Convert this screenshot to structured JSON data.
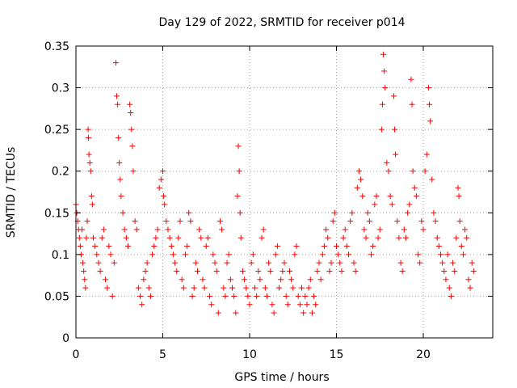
{
  "chart_data": {
    "type": "scatter",
    "title": "Day 129 of 2022, SRMTID for receiver p014",
    "xlabel": "GPS time / hours",
    "ylabel": "SRMTID / TECUs",
    "xlim": [
      0,
      24
    ],
    "ylim": [
      0,
      0.35
    ],
    "xticks": [
      0,
      5,
      10,
      15,
      20
    ],
    "xtick_labels": [
      "0",
      "5",
      "10",
      "15",
      "20"
    ],
    "yticks": [
      0,
      0.05,
      0.1,
      0.15,
      0.2,
      0.25,
      0.3,
      0.35
    ],
    "ytick_labels": [
      "0",
      "0.05",
      "0.1",
      "0.15",
      "0.2",
      "0.25",
      "0.3",
      "0.35"
    ],
    "grid": true,
    "marker": "+",
    "color": "#ff0000",
    "series": [
      {
        "name": "SRMTID",
        "points": [
          [
            0.0,
            0.16
          ],
          [
            0.05,
            0.15
          ],
          [
            0.1,
            0.14
          ],
          [
            0.15,
            0.13
          ],
          [
            0.2,
            0.12
          ],
          [
            0.25,
            0.11
          ],
          [
            0.3,
            0.1
          ],
          [
            0.35,
            0.13
          ],
          [
            0.4,
            0.09
          ],
          [
            0.45,
            0.08
          ],
          [
            0.5,
            0.07
          ],
          [
            0.55,
            0.06
          ],
          [
            0.6,
            0.12
          ],
          [
            0.65,
            0.14
          ],
          [
            0.7,
            0.25
          ],
          [
            0.72,
            0.24
          ],
          [
            0.75,
            0.22
          ],
          [
            0.8,
            0.21
          ],
          [
            0.85,
            0.2
          ],
          [
            0.9,
            0.17
          ],
          [
            0.95,
            0.16
          ],
          [
            1.0,
            0.12
          ],
          [
            1.1,
            0.11
          ],
          [
            1.2,
            0.1
          ],
          [
            1.3,
            0.09
          ],
          [
            1.4,
            0.08
          ],
          [
            1.5,
            0.12
          ],
          [
            1.6,
            0.13
          ],
          [
            1.7,
            0.07
          ],
          [
            1.8,
            0.06
          ],
          [
            1.9,
            0.11
          ],
          [
            2.0,
            0.1
          ],
          [
            2.1,
            0.05
          ],
          [
            2.2,
            0.09
          ],
          [
            2.3,
            0.33
          ],
          [
            2.35,
            0.29
          ],
          [
            2.4,
            0.28
          ],
          [
            2.45,
            0.24
          ],
          [
            2.5,
            0.21
          ],
          [
            2.55,
            0.19
          ],
          [
            2.6,
            0.17
          ],
          [
            2.7,
            0.15
          ],
          [
            2.8,
            0.13
          ],
          [
            2.9,
            0.12
          ],
          [
            3.0,
            0.11
          ],
          [
            3.1,
            0.28
          ],
          [
            3.15,
            0.27
          ],
          [
            3.2,
            0.25
          ],
          [
            3.25,
            0.23
          ],
          [
            3.3,
            0.2
          ],
          [
            3.4,
            0.14
          ],
          [
            3.5,
            0.13
          ],
          [
            3.6,
            0.06
          ],
          [
            3.7,
            0.05
          ],
          [
            3.8,
            0.04
          ],
          [
            3.9,
            0.07
          ],
          [
            4.0,
            0.08
          ],
          [
            4.1,
            0.09
          ],
          [
            4.2,
            0.06
          ],
          [
            4.3,
            0.05
          ],
          [
            4.4,
            0.1
          ],
          [
            4.5,
            0.11
          ],
          [
            4.6,
            0.12
          ],
          [
            4.7,
            0.13
          ],
          [
            4.8,
            0.18
          ],
          [
            4.9,
            0.19
          ],
          [
            5.0,
            0.2
          ],
          [
            5.05,
            0.17
          ],
          [
            5.1,
            0.16
          ],
          [
            5.2,
            0.14
          ],
          [
            5.3,
            0.13
          ],
          [
            5.4,
            0.12
          ],
          [
            5.5,
            0.11
          ],
          [
            5.6,
            0.1
          ],
          [
            5.7,
            0.09
          ],
          [
            5.8,
            0.08
          ],
          [
            5.9,
            0.12
          ],
          [
            6.0,
            0.14
          ],
          [
            6.1,
            0.07
          ],
          [
            6.2,
            0.06
          ],
          [
            6.3,
            0.1
          ],
          [
            6.4,
            0.11
          ],
          [
            6.5,
            0.15
          ],
          [
            6.6,
            0.14
          ],
          [
            6.7,
            0.05
          ],
          [
            6.8,
            0.06
          ],
          [
            6.9,
            0.09
          ],
          [
            7.0,
            0.08
          ],
          [
            7.1,
            0.13
          ],
          [
            7.2,
            0.12
          ],
          [
            7.3,
            0.07
          ],
          [
            7.4,
            0.06
          ],
          [
            7.5,
            0.11
          ],
          [
            7.6,
            0.12
          ],
          [
            7.7,
            0.05
          ],
          [
            7.8,
            0.04
          ],
          [
            7.9,
            0.1
          ],
          [
            8.0,
            0.09
          ],
          [
            8.1,
            0.08
          ],
          [
            8.2,
            0.03
          ],
          [
            8.3,
            0.14
          ],
          [
            8.4,
            0.13
          ],
          [
            8.5,
            0.06
          ],
          [
            8.6,
            0.05
          ],
          [
            8.7,
            0.09
          ],
          [
            8.8,
            0.1
          ],
          [
            8.9,
            0.07
          ],
          [
            9.0,
            0.06
          ],
          [
            9.1,
            0.05
          ],
          [
            9.2,
            0.03
          ],
          [
            9.3,
            0.17
          ],
          [
            9.35,
            0.23
          ],
          [
            9.4,
            0.2
          ],
          [
            9.45,
            0.15
          ],
          [
            9.5,
            0.12
          ],
          [
            9.6,
            0.08
          ],
          [
            9.7,
            0.07
          ],
          [
            9.8,
            0.06
          ],
          [
            9.9,
            0.05
          ],
          [
            10.0,
            0.04
          ],
          [
            10.1,
            0.09
          ],
          [
            10.2,
            0.1
          ],
          [
            10.3,
            0.06
          ],
          [
            10.4,
            0.05
          ],
          [
            10.5,
            0.08
          ],
          [
            10.6,
            0.07
          ],
          [
            10.7,
            0.12
          ],
          [
            10.8,
            0.13
          ],
          [
            10.9,
            0.06
          ],
          [
            11.0,
            0.05
          ],
          [
            11.1,
            0.09
          ],
          [
            11.2,
            0.08
          ],
          [
            11.3,
            0.04
          ],
          [
            11.4,
            0.03
          ],
          [
            11.5,
            0.1
          ],
          [
            11.6,
            0.11
          ],
          [
            11.7,
            0.06
          ],
          [
            11.8,
            0.07
          ],
          [
            11.9,
            0.08
          ],
          [
            12.0,
            0.09
          ],
          [
            12.1,
            0.05
          ],
          [
            12.2,
            0.04
          ],
          [
            12.3,
            0.08
          ],
          [
            12.4,
            0.07
          ],
          [
            12.5,
            0.06
          ],
          [
            12.6,
            0.1
          ],
          [
            12.7,
            0.11
          ],
          [
            12.8,
            0.05
          ],
          [
            12.9,
            0.04
          ],
          [
            13.0,
            0.06
          ],
          [
            13.1,
            0.03
          ],
          [
            13.2,
            0.05
          ],
          [
            13.3,
            0.04
          ],
          [
            13.4,
            0.06
          ],
          [
            13.5,
            0.07
          ],
          [
            13.6,
            0.03
          ],
          [
            13.7,
            0.05
          ],
          [
            13.8,
            0.04
          ],
          [
            13.9,
            0.08
          ],
          [
            14.0,
            0.09
          ],
          [
            14.1,
            0.07
          ],
          [
            14.2,
            0.1
          ],
          [
            14.3,
            0.11
          ],
          [
            14.4,
            0.13
          ],
          [
            14.5,
            0.12
          ],
          [
            14.6,
            0.08
          ],
          [
            14.7,
            0.09
          ],
          [
            14.8,
            0.14
          ],
          [
            14.9,
            0.15
          ],
          [
            15.0,
            0.11
          ],
          [
            15.1,
            0.1
          ],
          [
            15.2,
            0.09
          ],
          [
            15.3,
            0.08
          ],
          [
            15.4,
            0.12
          ],
          [
            15.5,
            0.13
          ],
          [
            15.6,
            0.11
          ],
          [
            15.7,
            0.1
          ],
          [
            15.8,
            0.14
          ],
          [
            15.9,
            0.15
          ],
          [
            16.0,
            0.09
          ],
          [
            16.1,
            0.08
          ],
          [
            16.2,
            0.18
          ],
          [
            16.3,
            0.2
          ],
          [
            16.4,
            0.19
          ],
          [
            16.5,
            0.17
          ],
          [
            16.6,
            0.13
          ],
          [
            16.7,
            0.12
          ],
          [
            16.8,
            0.15
          ],
          [
            16.9,
            0.14
          ],
          [
            17.0,
            0.1
          ],
          [
            17.1,
            0.11
          ],
          [
            17.2,
            0.16
          ],
          [
            17.3,
            0.17
          ],
          [
            17.4,
            0.12
          ],
          [
            17.5,
            0.13
          ],
          [
            17.6,
            0.25
          ],
          [
            17.65,
            0.28
          ],
          [
            17.7,
            0.34
          ],
          [
            17.75,
            0.32
          ],
          [
            17.8,
            0.3
          ],
          [
            17.9,
            0.21
          ],
          [
            18.0,
            0.2
          ],
          [
            18.1,
            0.17
          ],
          [
            18.2,
            0.16
          ],
          [
            18.3,
            0.29
          ],
          [
            18.35,
            0.25
          ],
          [
            18.4,
            0.22
          ],
          [
            18.5,
            0.14
          ],
          [
            18.6,
            0.12
          ],
          [
            18.7,
            0.09
          ],
          [
            18.8,
            0.08
          ],
          [
            18.9,
            0.13
          ],
          [
            19.0,
            0.12
          ],
          [
            19.1,
            0.15
          ],
          [
            19.2,
            0.16
          ],
          [
            19.3,
            0.31
          ],
          [
            19.35,
            0.28
          ],
          [
            19.4,
            0.2
          ],
          [
            19.5,
            0.18
          ],
          [
            19.6,
            0.17
          ],
          [
            19.7,
            0.1
          ],
          [
            19.8,
            0.09
          ],
          [
            19.9,
            0.14
          ],
          [
            20.0,
            0.13
          ],
          [
            20.1,
            0.2
          ],
          [
            20.2,
            0.22
          ],
          [
            20.3,
            0.3
          ],
          [
            20.35,
            0.28
          ],
          [
            20.4,
            0.26
          ],
          [
            20.5,
            0.19
          ],
          [
            20.6,
            0.15
          ],
          [
            20.7,
            0.14
          ],
          [
            20.8,
            0.12
          ],
          [
            20.9,
            0.11
          ],
          [
            21.0,
            0.1
          ],
          [
            21.1,
            0.09
          ],
          [
            21.2,
            0.08
          ],
          [
            21.3,
            0.07
          ],
          [
            21.4,
            0.1
          ],
          [
            21.5,
            0.06
          ],
          [
            21.6,
            0.05
          ],
          [
            21.7,
            0.09
          ],
          [
            21.8,
            0.08
          ],
          [
            21.9,
            0.12
          ],
          [
            22.0,
            0.18
          ],
          [
            22.05,
            0.17
          ],
          [
            22.1,
            0.14
          ],
          [
            22.2,
            0.11
          ],
          [
            22.3,
            0.1
          ],
          [
            22.4,
            0.13
          ],
          [
            22.5,
            0.12
          ],
          [
            22.6,
            0.07
          ],
          [
            22.7,
            0.06
          ],
          [
            22.8,
            0.09
          ],
          [
            22.9,
            0.08
          ]
        ]
      }
    ]
  }
}
